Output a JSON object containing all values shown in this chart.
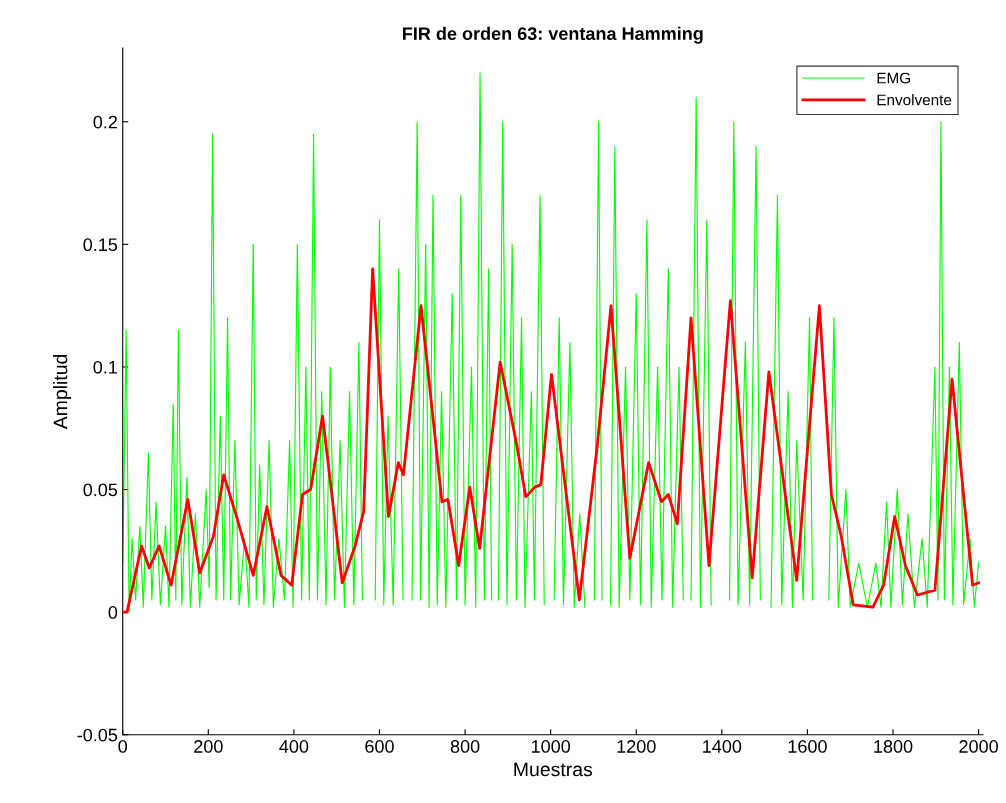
{
  "chart_data": {
    "type": "line",
    "title": "FIR de orden 63: ventana Hamming",
    "xlabel": "Muestras",
    "ylabel": "Amplitud",
    "xlim": [
      0,
      2010
    ],
    "ylim": [
      -0.05,
      0.23
    ],
    "xticks": [
      0,
      200,
      400,
      600,
      800,
      1000,
      1200,
      1400,
      1600,
      1800,
      2000
    ],
    "yticks": [
      -0.05,
      0,
      0.05,
      0.1,
      0.15,
      0.2
    ],
    "grid": false,
    "legend": "top right",
    "series": [
      {
        "name": "EMG",
        "color": "#00ff00",
        "x": [
          0,
          8,
          15,
          22,
          30,
          40,
          48,
          60,
          68,
          78,
          88,
          100,
          108,
          118,
          124,
          130,
          138,
          150,
          158,
          170,
          180,
          195,
          202,
          210,
          218,
          228,
          236,
          245,
          252,
          262,
          272,
          285,
          295,
          305,
          312,
          320,
          330,
          342,
          352,
          365,
          378,
          390,
          398,
          408,
          418,
          428,
          436,
          446,
          455,
          465,
          475,
          485,
          495,
          508,
          518,
          530,
          540,
          552,
          560,
          568,
          590,
          600,
          610,
          620,
          632,
          645,
          655,
          668,
          676,
          688,
          696,
          708,
          716,
          725,
          735,
          745,
          755,
          770,
          780,
          790,
          800,
          815,
          825,
          835,
          845,
          855,
          862,
          870,
          878,
          888,
          898,
          910,
          920,
          932,
          940,
          955,
          962,
          975,
          985,
          1000,
          1008,
          1020,
          1030,
          1045,
          1055,
          1068,
          1080,
          1095,
          1102,
          1112,
          1120,
          1130,
          1140,
          1150,
          1160,
          1175,
          1185,
          1200,
          1210,
          1225,
          1235,
          1250,
          1260,
          1275,
          1285,
          1300,
          1310,
          1320,
          1328,
          1340,
          1350,
          1365,
          1375,
          1392,
          1418,
          1428,
          1438,
          1455,
          1465,
          1480,
          1490,
          1505,
          1515,
          1530,
          1540,
          1555,
          1565,
          1575,
          1590,
          1605,
          1612,
          1620,
          1650,
          1662,
          1672,
          1690,
          1700,
          1720,
          1740,
          1760,
          1772,
          1785,
          1795,
          1810,
          1822,
          1835,
          1850,
          1868,
          1880,
          1898,
          1905,
          1912,
          1920,
          1932,
          1940,
          1955,
          1965,
          1980,
          1990,
          2000
        ],
        "values": [
          0.02,
          0.115,
          0.0,
          0.03,
          0.005,
          0.035,
          0.002,
          0.065,
          0.005,
          0.045,
          0.003,
          0.035,
          0.002,
          0.085,
          0.005,
          0.115,
          0.003,
          0.055,
          0.002,
          0.04,
          0.002,
          0.05,
          0.01,
          0.195,
          0.005,
          0.08,
          0.005,
          0.12,
          0.005,
          0.07,
          0.003,
          0.03,
          0.002,
          0.15,
          0.005,
          0.06,
          0.003,
          0.07,
          0.002,
          0.03,
          0.005,
          0.07,
          0.002,
          0.15,
          0.005,
          0.1,
          0.005,
          0.195,
          0.005,
          0.09,
          0.003,
          0.1,
          0.005,
          0.07,
          0.002,
          0.09,
          0.003,
          0.11,
          0.005,
          null,
          0.005,
          0.16,
          0.003,
          0.08,
          0.003,
          0.14,
          0.005,
          null,
          0.005,
          0.2,
          0.005,
          0.15,
          0.002,
          0.17,
          0.003,
          0.09,
          0.002,
          0.13,
          0.005,
          0.17,
          0.003,
          0.1,
          0.002,
          0.22,
          0.005,
          0.14,
          0.005,
          null,
          0.005,
          0.2,
          0.003,
          0.15,
          0.005,
          0.12,
          0.002,
          0.09,
          0.005,
          0.17,
          0.003,
          null,
          0.005,
          0.12,
          0.003,
          0.11,
          0.002,
          0.04,
          0.002,
          null,
          0.005,
          0.2,
          0.005,
          null,
          0.003,
          0.19,
          0.002,
          0.1,
          0.005,
          0.13,
          0.003,
          0.16,
          0.002,
          0.1,
          0.005,
          0.14,
          0.002,
          0.1,
          0.005,
          null,
          0.005,
          0.21,
          0.002,
          0.16,
          0.003,
          null,
          0.005,
          0.2,
          0.003,
          0.11,
          0.003,
          0.19,
          0.005,
          null,
          0.002,
          0.17,
          0.003,
          0.09,
          0.002,
          0.07,
          0.005,
          0.12,
          0.005,
          null,
          0.005,
          0.12,
          0.002,
          0.05,
          0.002,
          0.02,
          0.002,
          0.02,
          0.002,
          0.045,
          0.002,
          0.05,
          0.003,
          0.04,
          0.002,
          0.03,
          0.002,
          0.1,
          0.005,
          0.2,
          0.005,
          0.1,
          0.003,
          0.11,
          0.003,
          0.03,
          0.002,
          0.02
        ]
      },
      {
        "name": "Envolvente",
        "color": "#ff0000",
        "x": [
          0,
          10,
          44,
          62,
          85,
          113,
          152,
          180,
          212,
          236,
          266,
          305,
          337,
          370,
          395,
          420,
          439,
          467,
          513,
          543,
          563,
          584,
          621,
          644,
          656,
          697,
          746,
          760,
          785,
          811,
          834,
          882,
          921,
          942,
          963,
          977,
          1002,
          1028,
          1067,
          1109,
          1141,
          1185,
          1229,
          1259,
          1275,
          1296,
          1328,
          1370,
          1420,
          1471,
          1510,
          1552,
          1575,
          1628,
          1656,
          1679,
          1707,
          1753,
          1778,
          1804,
          1829,
          1857,
          1898,
          1938,
          1986,
          2000
        ],
        "values": [
          0,
          0,
          0.027,
          0.018,
          0.027,
          0.011,
          0.046,
          0.016,
          0.031,
          0.056,
          0.039,
          0.015,
          0.043,
          0.015,
          0.011,
          0.048,
          0.05,
          0.08,
          0.012,
          0.027,
          0.041,
          0.14,
          0.039,
          0.061,
          0.056,
          0.125,
          0.045,
          0.046,
          0.019,
          0.051,
          0.026,
          0.102,
          0.068,
          0.047,
          0.051,
          0.052,
          0.097,
          0.06,
          0.005,
          0.068,
          0.125,
          0.022,
          0.061,
          0.045,
          0.048,
          0.036,
          0.12,
          0.019,
          0.127,
          0.014,
          0.098,
          0.043,
          0.013,
          0.125,
          0.048,
          0.031,
          0.003,
          0.002,
          0.011,
          0.039,
          0.019,
          0.007,
          0.009,
          0.095,
          0.011,
          0.012
        ]
      }
    ]
  }
}
